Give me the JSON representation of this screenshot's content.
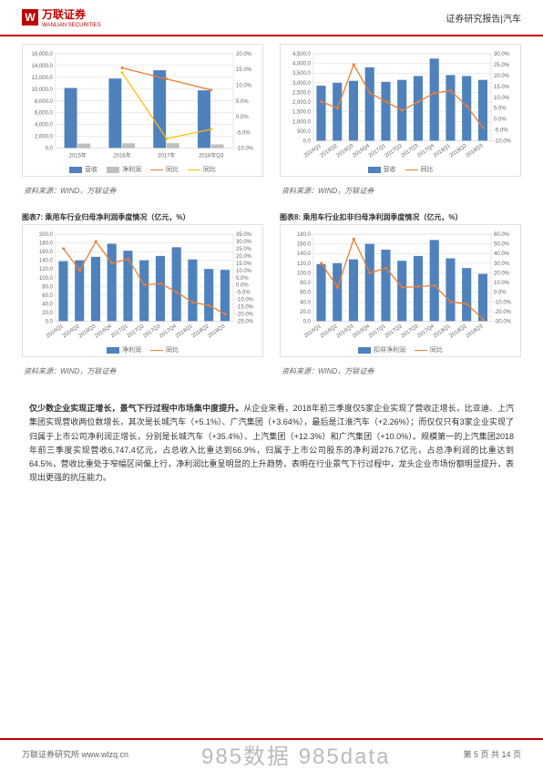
{
  "header": {
    "logo_cn": "万联证券",
    "logo_en": "WANLIAN SECURITIES",
    "logo_mark": "W",
    "right": "证券研究报告|汽车"
  },
  "footer": {
    "left": "万联证券研究所 www.wlzq.cn",
    "watermark": "985数据  985data",
    "right": "第 5 页 共 14 页"
  },
  "colors": {
    "brand": "#c00000",
    "bar_blue": "#4f81bd",
    "bar_grey": "#bfbfbf",
    "line_orange": "#ed7d31",
    "line_yellow": "#ffc000",
    "grid": "#d9d9d9",
    "axis_text": "#666666",
    "bg": "#ffffff"
  },
  "chart1": {
    "type": "bar+line",
    "categories": [
      "2015年",
      "2016年",
      "2017年",
      "2018年Q3"
    ],
    "bars": [
      {
        "name": "营收",
        "color": "#4f81bd",
        "values": [
          10200,
          11800,
          13200,
          9800
        ]
      },
      {
        "name": "净利润",
        "color": "#bfbfbf",
        "values": [
          780,
          830,
          840,
          630
        ]
      }
    ],
    "lines": [
      {
        "name": "同比",
        "color": "#ed7d31",
        "values": [
          null,
          15.5,
          12.0,
          8.5
        ]
      },
      {
        "name": "同比",
        "color": "#ffc000",
        "values": [
          null,
          14.0,
          -7.0,
          -4.0
        ]
      }
    ],
    "yleft": {
      "min": 0,
      "max": 16000,
      "step": 2000
    },
    "yright": {
      "min": -10,
      "max": 20,
      "step": 5,
      "suffix": "%"
    },
    "legend": [
      "营收",
      "净利润",
      "同比",
      "同比"
    ]
  },
  "chart2": {
    "type": "bar+line",
    "categories": [
      "2016Q1",
      "2016Q2",
      "2016Q3",
      "2016Q4",
      "2017Q1",
      "2017Q2",
      "2017Q3",
      "2017Q4",
      "2018Q1",
      "2018Q2",
      "2018Q3"
    ],
    "bars": [
      {
        "name": "营收",
        "color": "#4f81bd",
        "values": [
          2850,
          3000,
          3100,
          3800,
          3050,
          3150,
          3350,
          4250,
          3400,
          3350,
          3150
        ]
      }
    ],
    "lines": [
      {
        "name": "同比",
        "color": "#ed7d31",
        "values": [
          8,
          5,
          25,
          12,
          8,
          4,
          8,
          12,
          13,
          6,
          -4
        ]
      }
    ],
    "yleft": {
      "min": 0,
      "max": 4500,
      "step": 500
    },
    "yright": {
      "min": -10,
      "max": 30,
      "step": 5,
      "suffix": "%"
    },
    "legend": [
      "营收",
      "同比"
    ]
  },
  "row2_titles": {
    "left": "图表7:  乘用车行业归母净利润季度情况（亿元，%）",
    "right": "图表8:  乘用车行业扣非归母净利润季度情况（亿元，%）"
  },
  "chart3": {
    "type": "bar+line",
    "categories": [
      "2016Q1",
      "2016Q2",
      "2016Q3",
      "2016Q4",
      "2017Q1",
      "2017Q2",
      "2017Q3",
      "2017Q4",
      "2018Q1",
      "2018Q2",
      "2018Q3"
    ],
    "bars": [
      {
        "name": "净利润",
        "color": "#4f81bd",
        "values": [
          138,
          140,
          148,
          178,
          162,
          140,
          150,
          170,
          142,
          120,
          118
        ]
      }
    ],
    "lines": [
      {
        "name": "同比",
        "color": "#ed7d31",
        "values": [
          25,
          10,
          30,
          15,
          18,
          0,
          1,
          -5,
          -12,
          -14,
          -20
        ]
      }
    ],
    "yleft": {
      "min": 0,
      "max": 200,
      "step": 20
    },
    "yright": {
      "min": -25,
      "max": 35,
      "step": 5,
      "suffix": "%"
    },
    "legend": [
      "净利润",
      "同比"
    ]
  },
  "chart4": {
    "type": "bar+line",
    "categories": [
      "2016Q1",
      "2016Q2",
      "2016Q3",
      "2016Q4",
      "2017Q1",
      "2017Q2",
      "2017Q3",
      "2017Q4",
      "2018Q1",
      "2018Q2",
      "2018Q3"
    ],
    "bars": [
      {
        "name": "扣非净利润",
        "color": "#4f81bd",
        "values": [
          118,
          120,
          128,
          160,
          148,
          125,
          135,
          168,
          130,
          110,
          98
        ]
      }
    ],
    "lines": [
      {
        "name": "同比",
        "color": "#ed7d31",
        "values": [
          30,
          5,
          55,
          20,
          25,
          5,
          6,
          7,
          -10,
          -12,
          -28
        ]
      }
    ],
    "yleft": {
      "min": 0,
      "max": 180,
      "step": 20
    },
    "yright": {
      "min": -30,
      "max": 60,
      "step": 10,
      "suffix": "%"
    },
    "legend": [
      "扣非净利润",
      "同比"
    ]
  },
  "sources": {
    "s": "资料来源：WIND，万联证券"
  },
  "body": {
    "lead": "仅少数企业实现正增长，景气下行过程中市场集中度提升。",
    "text": "从企业来看，2018年前三季度仅5家企业实现了营收正增长，比亚迪、上汽集团实现营收两位数增长，其次是长城汽车（+5.1%）、广汽集团（+3.64%），最后是江淮汽车（+2.26%）；而仅仅只有3家企业实现了归属于上市公司净利润正增长，分别是长城汽车（+35.4%）、上汽集团（+12.3%）和广汽集团（+10.0%）。规模第一的上汽集团2018年前三季度实现营收6,747.4亿元，占总收入比重达到66.9%，归属于上市公司股东的净利润276.7亿元，占总净利润的比重达到64.5%，营收比重处于窄幅区间偏上行，净利润比重呈明显的上升趋势，表明在行业景气下行过程中，龙头企业市场份额明显提升，表现出更强的抗压能力。"
  }
}
